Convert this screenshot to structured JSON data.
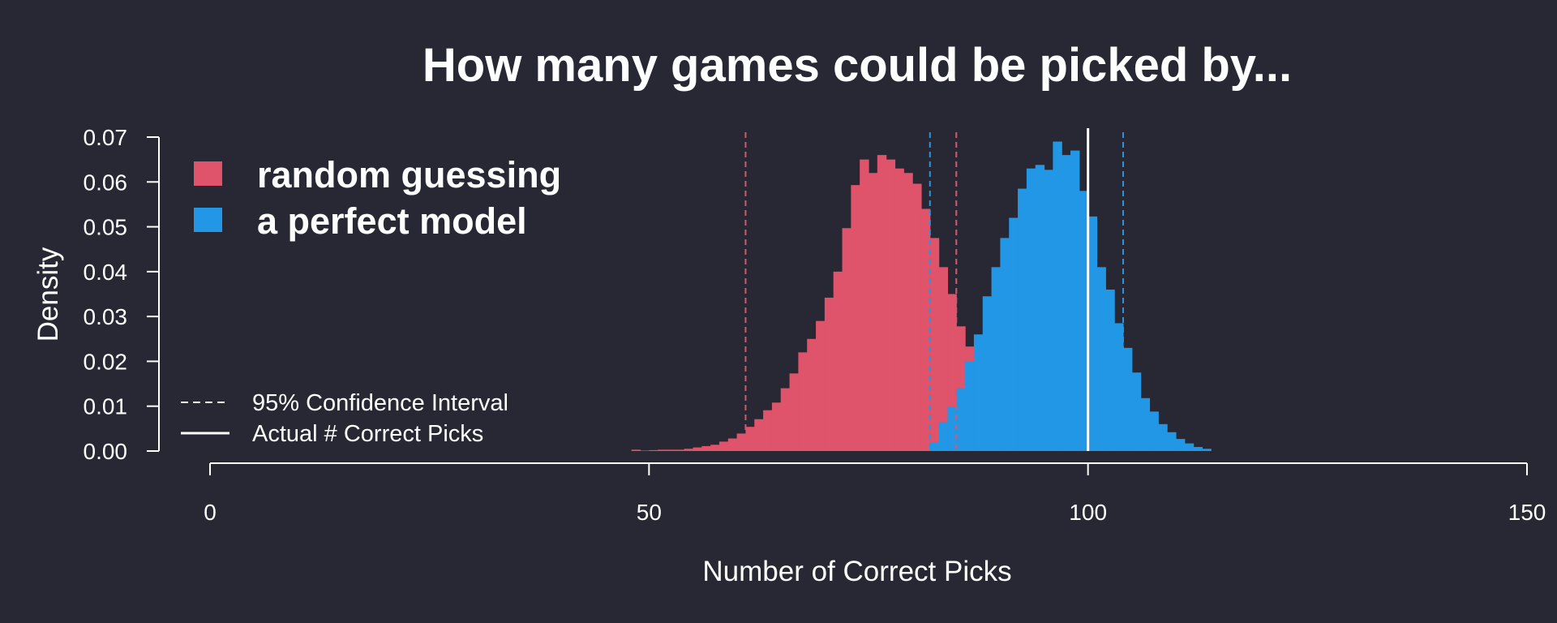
{
  "chart_data": {
    "type": "bar",
    "title": "How many games could be picked by...",
    "xlabel": "Number of Correct Picks",
    "ylabel": "Density",
    "xlim": [
      0,
      150
    ],
    "ylim": [
      0,
      0.07
    ],
    "x_ticks": [
      "0",
      "50",
      "100",
      "150"
    ],
    "y_ticks": [
      "0.00",
      "0.01",
      "0.02",
      "0.03",
      "0.04",
      "0.05",
      "0.06",
      "0.07"
    ],
    "grid": false,
    "legend_position": "top-left",
    "series": [
      {
        "name": "random guessing",
        "color": "#df536b",
        "bin_width": 1,
        "x": [
          48,
          49,
          50,
          51,
          52,
          53,
          54,
          55,
          56,
          57,
          58,
          59,
          60,
          61,
          62,
          63,
          64,
          65,
          66,
          67,
          68,
          69,
          70,
          71,
          72,
          73,
          74,
          75,
          76,
          77,
          78,
          79,
          80,
          81,
          82,
          83,
          84,
          85,
          86,
          87,
          88,
          89,
          90,
          91,
          92,
          93,
          94,
          95
        ],
        "values": [
          0.0003,
          0.0001,
          0.0002,
          0.0003,
          0.0003,
          0.0003,
          0.0005,
          0.0008,
          0.0011,
          0.0014,
          0.0021,
          0.0028,
          0.0039,
          0.0054,
          0.0071,
          0.0091,
          0.0108,
          0.014,
          0.0173,
          0.022,
          0.025,
          0.029,
          0.0342,
          0.04,
          0.0497,
          0.0593,
          0.065,
          0.062,
          0.066,
          0.065,
          0.063,
          0.062,
          0.0596,
          0.054,
          0.0475,
          0.041,
          0.035,
          0.0278,
          0.0233,
          0.0185,
          0.0155,
          0.012,
          0.0087,
          0.0064,
          0.0046,
          0.003,
          0.0018,
          0.001
        ]
      },
      {
        "name": "a perfect model",
        "color": "#2297e6",
        "bin_width": 1,
        "x": [
          82,
          83,
          84,
          85,
          86,
          87,
          88,
          89,
          90,
          91,
          92,
          93,
          94,
          95,
          96,
          97,
          98,
          99,
          100,
          101,
          102,
          103,
          104,
          105,
          106,
          107,
          108,
          109,
          110,
          111,
          112,
          113
        ],
        "values": [
          0.002,
          0.0064,
          0.0098,
          0.014,
          0.02,
          0.026,
          0.0345,
          0.041,
          0.0475,
          0.052,
          0.0585,
          0.063,
          0.0638,
          0.0627,
          0.069,
          0.066,
          0.067,
          0.058,
          0.0523,
          0.041,
          0.036,
          0.0285,
          0.023,
          0.0175,
          0.0118,
          0.0088,
          0.006,
          0.0042,
          0.0027,
          0.0017,
          0.0009,
          0.0005
        ]
      }
    ],
    "reference_lines": [
      {
        "x": 61,
        "style": "dashed",
        "color": "#df536b"
      },
      {
        "x": 85,
        "style": "dashed",
        "color": "#df536b"
      },
      {
        "x": 82,
        "style": "dashed",
        "color": "#2297e6"
      },
      {
        "x": 104,
        "style": "dashed",
        "color": "#2297e6"
      },
      {
        "x": 100,
        "style": "solid",
        "color": "#ffffff"
      }
    ],
    "legend": {
      "fill_entries": [
        {
          "label": "random guessing",
          "color": "#df536b"
        },
        {
          "label": "a perfect model",
          "color": "#2297e6"
        }
      ],
      "line_entries": [
        {
          "label": "95% Confidence Interval",
          "style": "dashed"
        },
        {
          "label": "Actual # Correct Picks",
          "style": "solid"
        }
      ]
    }
  }
}
